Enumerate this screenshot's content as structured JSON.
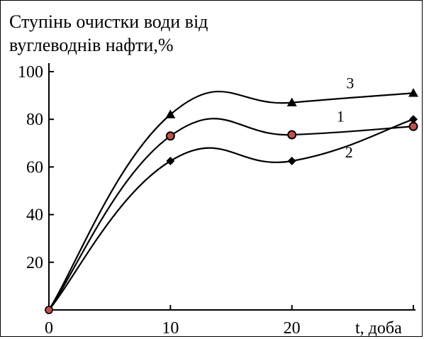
{
  "chart_data": {
    "type": "line",
    "title_lines": [
      "Ступінь очистки води від",
      "вуглеводнів нафти,%"
    ],
    "xlabel": "t, доба",
    "ylabel": "",
    "x": [
      0,
      10,
      20,
      30
    ],
    "xlim": [
      0,
      30
    ],
    "ylim": [
      0,
      100
    ],
    "x_ticks": [
      "0",
      "10",
      "20"
    ],
    "y_ticks": [
      "20",
      "40",
      "60",
      "80",
      "100"
    ],
    "y_tick_values": [
      20,
      40,
      60,
      80,
      100
    ],
    "grid": false,
    "series": [
      {
        "name": "1",
        "marker": "circle",
        "marker_fill": "#c0504d",
        "values": [
          0,
          73,
          73.5,
          77
        ]
      },
      {
        "name": "2",
        "marker": "diamond",
        "marker_fill": "#000000",
        "values": [
          0,
          62.5,
          62.5,
          80
        ]
      },
      {
        "name": "3",
        "marker": "triangle",
        "marker_fill": "#000000",
        "values": [
          0,
          82,
          87,
          91
        ]
      }
    ]
  }
}
